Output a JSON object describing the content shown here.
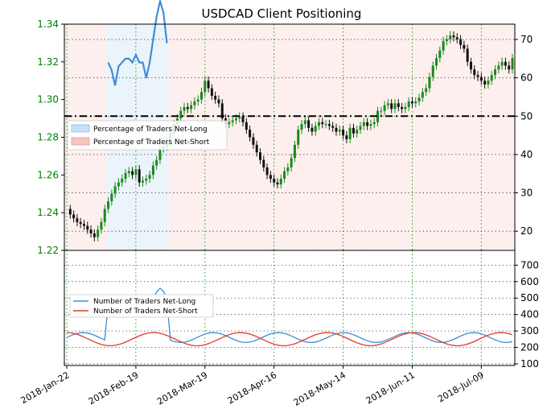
{
  "chart_data": [
    {
      "type": "candlestick",
      "title": "USDCAD Client Positioning",
      "x_tick_labels": [
        "2018-Jan-22",
        "2018-Feb-19",
        "2018-Mar-19",
        "2018-Apr-16",
        "2018-May-14",
        "2018-Jun-11",
        "2018-Jul-09"
      ],
      "price_axis": {
        "side": "left",
        "ticks": [
          1.22,
          1.24,
          1.26,
          1.28,
          1.3,
          1.32,
          1.34
        ],
        "ylim": [
          1.22,
          1.34
        ],
        "color": "#008000"
      },
      "pct_axis": {
        "side": "right",
        "ticks": [
          20,
          30,
          40,
          50,
          60,
          70
        ],
        "ylim": [
          15,
          74
        ]
      },
      "reference_line": 50,
      "legend": {
        "position": "left",
        "entries": [
          "Percentage of Traders Net-Long",
          "Percentage of Traders Net-Short"
        ]
      },
      "price_close": [
        1.242,
        1.239,
        1.237,
        1.235,
        1.234,
        1.233,
        1.231,
        1.229,
        1.227,
        1.231,
        1.235,
        1.242,
        1.246,
        1.25,
        1.254,
        1.256,
        1.258,
        1.261,
        1.262,
        1.26,
        1.263,
        1.256,
        1.257,
        1.258,
        1.26,
        1.265,
        1.268,
        1.274,
        1.275,
        1.278,
        1.282,
        1.287,
        1.29,
        1.294,
        1.296,
        1.295,
        1.297,
        1.299,
        1.3,
        1.304,
        1.31,
        1.306,
        1.302,
        1.3,
        1.298,
        1.29,
        1.287,
        1.288,
        1.289,
        1.29,
        1.291,
        1.288,
        1.284,
        1.28,
        1.276,
        1.272,
        1.268,
        1.264,
        1.26,
        1.258,
        1.256,
        1.255,
        1.258,
        1.262,
        1.264,
        1.269,
        1.276,
        1.284,
        1.287,
        1.289,
        1.285,
        1.283,
        1.286,
        1.288,
        1.287,
        1.287,
        1.286,
        1.285,
        1.283,
        1.284,
        1.281,
        1.279,
        1.285,
        1.282,
        1.284,
        1.286,
        1.288,
        1.286,
        1.287,
        1.288,
        1.294,
        1.294,
        1.297,
        1.298,
        1.295,
        1.298,
        1.296,
        1.295,
        1.296,
        1.299,
        1.298,
        1.299,
        1.301,
        1.304,
        1.306,
        1.312,
        1.318,
        1.322,
        1.326,
        1.331,
        1.332,
        1.334,
        1.333,
        1.332,
        1.329,
        1.327,
        1.32,
        1.316,
        1.313,
        1.312,
        1.31,
        1.308,
        1.31,
        1.313,
        1.316,
        1.318,
        1.32,
        1.318,
        1.316,
        1.322
      ],
      "net_long_pct": [
        null,
        null,
        null,
        null,
        null,
        null,
        null,
        null,
        null,
        null,
        null,
        null,
        64,
        62,
        58,
        63,
        64,
        65,
        65,
        64,
        66,
        64,
        64,
        60,
        64,
        70,
        76,
        80,
        77,
        69,
        null,
        null,
        null,
        null,
        null,
        null,
        null,
        null,
        null,
        null,
        null,
        null,
        null,
        null,
        null,
        null,
        null,
        null,
        null,
        null,
        null,
        null,
        null,
        null,
        null,
        null,
        null,
        null,
        null,
        null,
        null,
        null,
        null,
        null,
        null,
        null,
        null,
        null,
        null,
        null,
        null,
        null,
        null,
        null,
        null,
        null,
        null,
        null,
        null,
        null,
        null,
        null,
        null,
        null,
        null,
        null,
        null,
        null,
        null,
        null,
        null,
        null,
        null,
        null,
        null,
        null,
        null,
        null,
        null,
        null,
        null,
        null,
        null,
        null,
        null,
        null,
        null,
        null,
        null,
        null,
        null,
        null,
        null,
        null,
        null,
        null,
        null,
        null,
        null,
        null,
        null,
        null,
        null,
        null,
        null,
        null,
        null,
        null,
        null,
        null,
        null,
        null
      ],
      "net_short_pct": [
        null,
        null,
        null,
        null,
        null,
        null,
        null,
        null,
        null,
        null,
        null,
        null,
        null,
        null,
        null,
        null,
        null,
        null,
        null,
        null,
        null,
        null,
        null,
        null,
        null,
        null,
        null,
        null,
        null,
        null,
        null,
        null,
        null,
        null,
        null,
        null,
        null,
        null,
        null,
        null,
        null,
        null,
        null,
        null,
        null,
        null,
        null,
        null,
        null,
        null,
        null,
        null,
        null,
        null,
        null,
        null,
        null,
        null,
        null,
        null,
        null,
        null,
        null,
        null,
        null,
        null,
        null,
        null,
        null,
        null,
        null,
        null,
        null,
        null,
        null,
        null,
        null,
        null,
        null,
        null,
        null,
        null,
        null,
        null,
        null,
        null,
        null,
        null,
        null,
        null,
        null,
        null,
        null,
        null,
        null,
        null,
        null,
        null,
        null,
        null,
        null,
        null,
        null,
        null,
        null,
        null,
        null,
        null,
        null,
        null,
        null,
        null,
        null,
        null,
        null,
        null,
        null,
        null,
        null,
        null,
        null,
        null,
        null,
        null,
        null,
        null,
        null,
        null,
        null,
        null,
        null,
        null
      ]
    },
    {
      "type": "line",
      "y_axis": {
        "side": "right",
        "ticks": [
          100,
          200,
          300,
          400,
          500,
          600,
          700
        ],
        "ylim": [
          90,
          790
        ]
      },
      "legend": {
        "position": "left",
        "entries": [
          "Number of Traders Net-Long",
          "Number of Traders Net-Short"
        ]
      },
      "series": [
        {
          "name": "Number of Traders Net-Long",
          "color": "#3d8fd6"
        },
        {
          "name": "Number of Traders Net-Short",
          "color": "#e03b2b"
        }
      ]
    }
  ]
}
